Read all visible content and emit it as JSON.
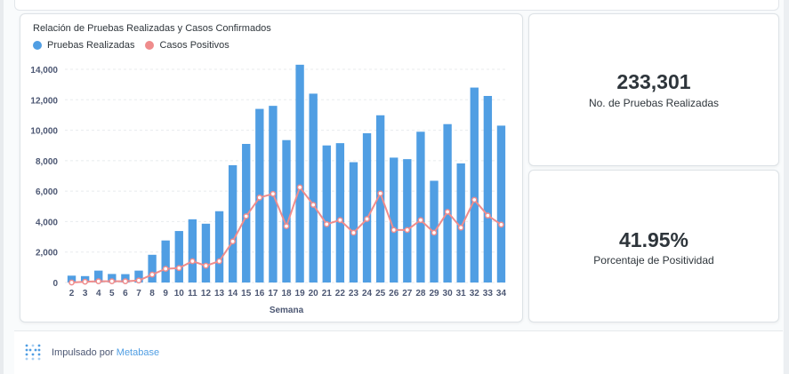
{
  "chart_data": {
    "type": "bar",
    "title": "Relación de Pruebas Realizadas y Casos Confirmados",
    "xlabel": "Semana",
    "ylabel": "",
    "ylim": [
      0,
      14000
    ],
    "yticks": [
      "0",
      "2,000",
      "4,000",
      "6,000",
      "8,000",
      "10,000",
      "12,000",
      "14,000"
    ],
    "grid": true,
    "legend_position": "top-left",
    "categories": [
      "2",
      "3",
      "4",
      "5",
      "6",
      "7",
      "8",
      "9",
      "10",
      "11",
      "12",
      "13",
      "14",
      "15",
      "16",
      "17",
      "18",
      "19",
      "20",
      "21",
      "22",
      "23",
      "24",
      "25",
      "26",
      "27",
      "28",
      "29",
      "30",
      "31",
      "32",
      "33",
      "34"
    ],
    "series": [
      {
        "name": "Pruebas Realizadas",
        "type": "bar",
        "color": "#509ee3",
        "values": [
          450,
          420,
          780,
          560,
          550,
          780,
          1820,
          2760,
          3380,
          4150,
          3860,
          4680,
          7700,
          9100,
          11400,
          11600,
          9350,
          14300,
          12400,
          9000,
          9150,
          7900,
          9800,
          10980,
          8200,
          8100,
          9900,
          6680,
          10400,
          7820,
          12800,
          12250,
          10300
        ]
      },
      {
        "name": "Casos Positivos",
        "type": "line",
        "color": "#ef8c8c",
        "values": [
          0,
          50,
          80,
          80,
          80,
          130,
          520,
          900,
          950,
          1400,
          1100,
          1400,
          2700,
          4350,
          5580,
          5820,
          3700,
          6250,
          5100,
          3830,
          4100,
          3270,
          4170,
          5850,
          3450,
          3450,
          4100,
          3270,
          4640,
          3600,
          5430,
          4400,
          3800
        ]
      }
    ]
  },
  "kpis": [
    {
      "value": "233,301",
      "label": "No. de Pruebas Realizadas"
    },
    {
      "value": "41.95%",
      "label": "Porcentaje de Positividad"
    }
  ],
  "footer": {
    "prefix": "Impulsado por",
    "link": "Metabase",
    "logo_icon": "metabase-logo-icon",
    "link_color": "#509ee3"
  }
}
